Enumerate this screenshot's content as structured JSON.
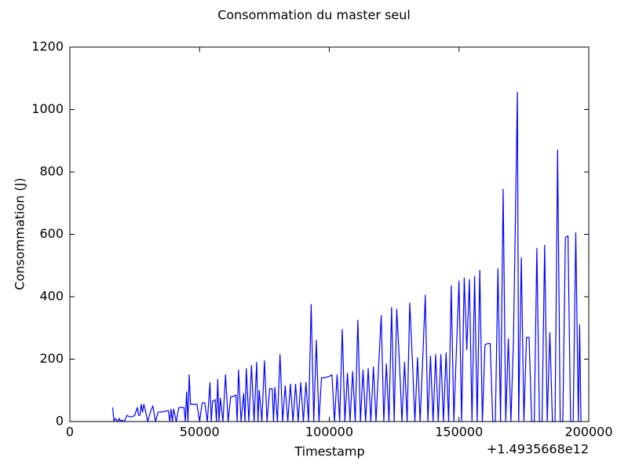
{
  "chart_data": {
    "type": "line",
    "title": "Consommation du master seul",
    "x_label": "Timestamp",
    "y_label": "Consommation (J)",
    "x_offset_label": "+1.4935668e12",
    "x": [
      16500,
      17000,
      17500,
      18000,
      18500,
      19000,
      19500,
      20000,
      21000,
      22000,
      23000,
      24000,
      25000,
      26000,
      26500,
      27000,
      27500,
      28000,
      28500,
      29000,
      30000,
      31000,
      32000,
      33000,
      34000,
      35000,
      38000,
      38500,
      39000,
      39500,
      40000,
      40500,
      41000,
      42000,
      44000,
      44500,
      45000,
      45500,
      46000,
      46500,
      47000,
      49000,
      50000,
      51000,
      52000,
      53000,
      54000,
      54500,
      55000,
      56000,
      56500,
      57000,
      57500,
      58000,
      59000,
      60000,
      61000,
      62000,
      63000,
      64000,
      64500,
      65000,
      66000,
      67000,
      67500,
      68000,
      69000,
      70000,
      71000,
      72000,
      72500,
      73000,
      74000,
      75000,
      76000,
      77000,
      78000,
      78500,
      79000,
      80000,
      81000,
      82000,
      83000,
      84000,
      85000,
      86000,
      87000,
      88000,
      89000,
      90000,
      91000,
      92000,
      93000,
      94000,
      95000,
      96000,
      97000,
      98000,
      100000,
      101000,
      102000,
      103000,
      104000,
      105000,
      106000,
      107000,
      108000,
      109000,
      110000,
      111000,
      112000,
      113000,
      114000,
      115000,
      116000,
      117000,
      118000,
      119000,
      120000,
      121000,
      122000,
      123000,
      124000,
      125000,
      126000,
      127000,
      128000,
      129000,
      130000,
      131000,
      132000,
      133000,
      134000,
      135000,
      136000,
      137000,
      138000,
      139000,
      140000,
      141000,
      142000,
      143000,
      144000,
      145000,
      146000,
      147000,
      148000,
      149000,
      150000,
      151000,
      152000,
      153000,
      154000,
      155000,
      156000,
      157000,
      158000,
      159000,
      160000,
      161000,
      162000,
      163000,
      164000,
      165000,
      166000,
      167000,
      168000,
      169000,
      170000,
      171000,
      172500,
      173000,
      174000,
      175000,
      176000,
      177000,
      178000,
      179000,
      180000,
      181000,
      182000,
      183000,
      184000,
      185000,
      186000,
      187000,
      188000,
      189000,
      190000,
      191000,
      192000,
      193000,
      194000,
      195000,
      196000,
      196500,
      197000
    ],
    "series": [
      {
        "name": "Consommation",
        "color": "#0000ff",
        "values": [
          45,
          0,
          10,
          5,
          0,
          10,
          0,
          5,
          0,
          20,
          15,
          15,
          20,
          45,
          20,
          20,
          55,
          30,
          55,
          40,
          0,
          30,
          50,
          0,
          30,
          30,
          35,
          0,
          40,
          0,
          40,
          20,
          0,
          45,
          45,
          0,
          95,
          0,
          150,
          55,
          55,
          55,
          0,
          60,
          60,
          0,
          125,
          0,
          65,
          70,
          0,
          135,
          0,
          75,
          0,
          150,
          0,
          80,
          80,
          85,
          0,
          165,
          0,
          90,
          0,
          170,
          0,
          180,
          0,
          190,
          0,
          100,
          0,
          195,
          0,
          105,
          105,
          0,
          110,
          0,
          215,
          0,
          115,
          0,
          120,
          0,
          120,
          0,
          125,
          0,
          125,
          0,
          375,
          0,
          260,
          0,
          140,
          140,
          145,
          150,
          0,
          150,
          0,
          295,
          0,
          155,
          0,
          160,
          0,
          325,
          0,
          165,
          0,
          170,
          0,
          175,
          0,
          175,
          340,
          0,
          185,
          0,
          365,
          0,
          360,
          195,
          0,
          190,
          0,
          380,
          200,
          0,
          205,
          0,
          200,
          405,
          0,
          210,
          0,
          215,
          0,
          215,
          0,
          220,
          0,
          435,
          0,
          230,
          450,
          0,
          460,
          230,
          455,
          0,
          465,
          0,
          485,
          0,
          245,
          250,
          250,
          0,
          0,
          490,
          0,
          745,
          0,
          265,
          0,
          265,
          1055,
          0,
          525,
          0,
          270,
          270,
          0,
          0,
          555,
          0,
          0,
          565,
          0,
          285,
          0,
          0,
          870,
          0,
          0,
          590,
          595,
          0,
          0,
          605,
          0,
          310,
          0
        ]
      }
    ],
    "xlim": [
      0,
      200000
    ],
    "xticks": [
      0,
      50000,
      100000,
      150000,
      200000
    ],
    "ylim": [
      0,
      1200
    ],
    "yticks": [
      0,
      200,
      400,
      600,
      800,
      1000,
      1200
    ]
  }
}
